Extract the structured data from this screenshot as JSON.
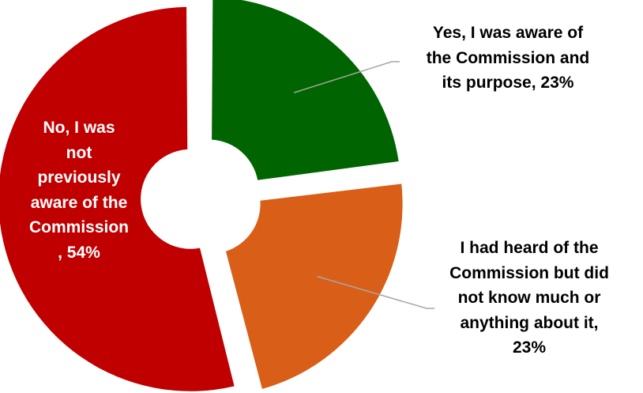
{
  "chart_data": {
    "type": "pie",
    "title": "",
    "hole": true,
    "slices": [
      {
        "label": "Yes, I was aware of the Commission and its purpose",
        "value": 23,
        "value_text": "23%",
        "color": "#006400"
      },
      {
        "label": "I had heard of the Commission but did not know much or anything about it",
        "value": 23,
        "value_text": "23%",
        "color": "#d95e17"
      },
      {
        "label": "No, I was not previously aware of the Commission",
        "value": 54,
        "value_text": "54%",
        "color": "#c00000"
      }
    ]
  },
  "labels": {
    "yes_lines": [
      "Yes, I was aware of",
      "the Commission and",
      "its purpose, 23%"
    ],
    "heard_lines": [
      "I had heard of the",
      "Commission but did",
      "not know much or",
      "anything about it,",
      "23%"
    ],
    "no_lines": [
      "No, I was",
      "not",
      "previously",
      "aware of the",
      "Commission",
      ", 54%"
    ]
  }
}
